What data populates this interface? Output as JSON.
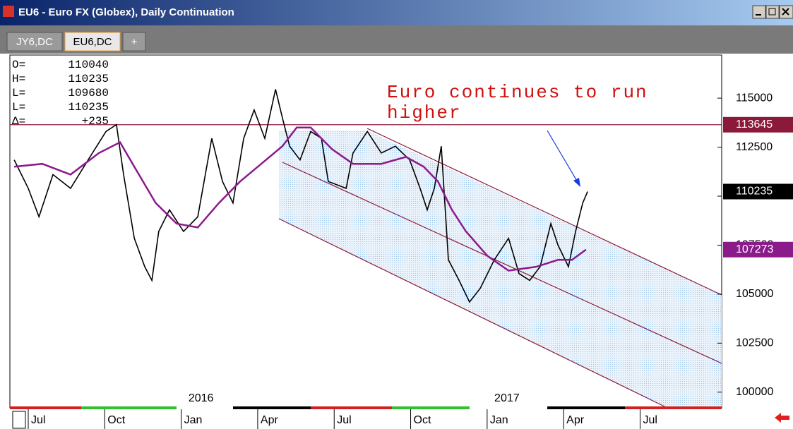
{
  "window": {
    "title": "EU6 - Euro FX (Globex), Daily Continuation"
  },
  "tabs": [
    "JY6,DC",
    "EU6,DC",
    "+"
  ],
  "chart_data": {
    "type": "line",
    "annotation": [
      "Euro continues to run",
      "higher"
    ],
    "readout": [
      {
        "label": "O=",
        "value": 110040
      },
      {
        "label": "H=",
        "value": 110235
      },
      {
        "label": "L=",
        "value": 109680
      },
      {
        "label": "L=",
        "value": 110235
      },
      {
        "label": "Δ=",
        "value": 235,
        "value_label": "+235"
      }
    ],
    "series": [
      {
        "color": "#000000",
        "x": [
          -0.55,
          0,
          0.42,
          0.97,
          1.66,
          2.35,
          3.05,
          3.46,
          3.74,
          4.16,
          4.57,
          4.85,
          5.12,
          5.54,
          6.09,
          6.65,
          7.2,
          7.62,
          8.03,
          8.45,
          8.86,
          9.28,
          9.7,
          9.97,
          10.25,
          10.66,
          11.08,
          11.5,
          11.77,
          12.47,
          12.74,
          13.3,
          13.85,
          14.4,
          14.96,
          15.37,
          15.65,
          15.93,
          16.2,
          16.48,
          16.9,
          17.31,
          17.73,
          18.28,
          18.84,
          19.25,
          19.67,
          20.08,
          20.5,
          20.78,
          21.19,
          21.47,
          21.75,
          21.94
        ],
        "values": [
          111850,
          110400,
          108950,
          111100,
          110400,
          111850,
          113300,
          113650,
          111100,
          107850,
          106400,
          105700,
          108200,
          109300,
          108200,
          108950,
          112950,
          110750,
          109650,
          112950,
          114400,
          112950,
          115450,
          114000,
          112550,
          111850,
          113300,
          112950,
          110750,
          110400,
          112200,
          113300,
          112200,
          112550,
          111850,
          110400,
          109300,
          110400,
          112550,
          106750,
          105700,
          104600,
          105300,
          106750,
          107850,
          106050,
          105700,
          106400,
          108600,
          107500,
          106400,
          108200,
          109650,
          110235
        ]
      },
      {
        "color": "#8b1a8b",
        "x": [
          -0.55,
          0.55,
          1.66,
          2.77,
          3.6,
          4.16,
          5.0,
          5.82,
          6.65,
          7.48,
          8.31,
          9.14,
          9.97,
          10.53,
          11.08,
          11.91,
          12.74,
          13.85,
          14.82,
          15.51,
          16.07,
          16.62,
          17.17,
          18.01,
          18.84,
          19.94,
          20.78,
          21.33,
          21.88
        ],
        "values": [
          111500,
          111650,
          111100,
          112200,
          112750,
          111500,
          109650,
          108600,
          108400,
          109650,
          110750,
          111650,
          112550,
          113500,
          113500,
          112400,
          111650,
          111650,
          112000,
          111500,
          110750,
          109300,
          108200,
          106950,
          106200,
          106400,
          106750,
          106750,
          107273
        ]
      }
    ],
    "price_levels": [
      {
        "value": 113645,
        "color": "#8b1a3a"
      },
      {
        "value": 110235,
        "color": "#000000"
      },
      {
        "value": 107273,
        "color": "#8b1a8b"
      }
    ],
    "ylim": [
      99200,
      117200
    ],
    "yticks": [
      100000,
      102500,
      105000,
      107500,
      110000,
      112500,
      115000
    ],
    "xlim": [
      -0.72,
      27.2
    ],
    "xticks": [
      {
        "value": 0,
        "label": "Jul"
      },
      {
        "value": 3,
        "label": "Oct"
      },
      {
        "value": 6,
        "label": "Jan"
      },
      {
        "value": 9,
        "label": "Apr"
      },
      {
        "value": 12,
        "label": "Jul"
      },
      {
        "value": 15,
        "label": "Oct"
      },
      {
        "value": 18,
        "label": "Jan"
      },
      {
        "value": 21,
        "label": "Apr"
      },
      {
        "value": 24,
        "label": "Jul"
      }
    ],
    "years": [
      "2016",
      "2017"
    ]
  }
}
